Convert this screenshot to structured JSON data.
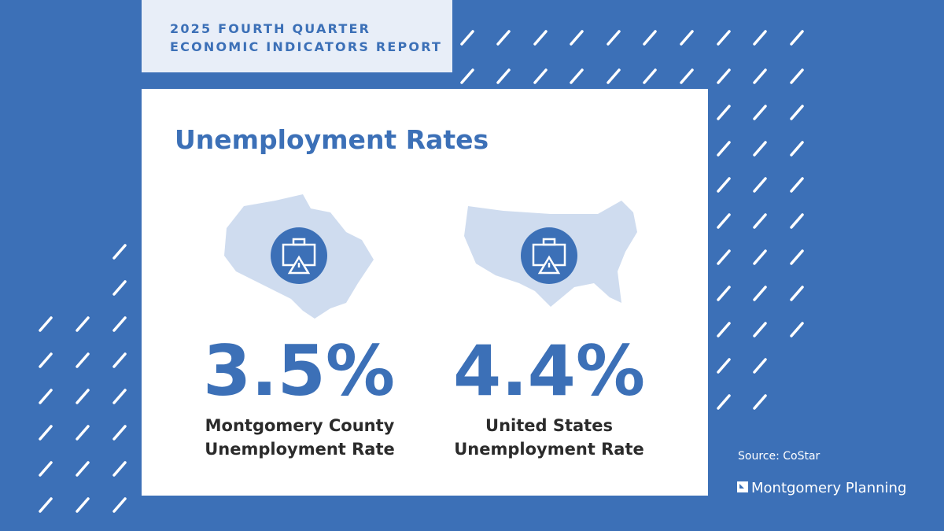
{
  "header": {
    "title_lines": [
      "2025 FOURTH QUARTER",
      "ECONOMIC INDICATORS REPORT"
    ]
  },
  "card": {
    "title": "Unemployment Rates",
    "stats": [
      {
        "value": "3.5%",
        "label_lines": [
          "Montgomery County",
          "Unemployment Rate"
        ]
      },
      {
        "value": "4.4%",
        "label_lines": [
          "United States",
          "Unemployment Rate"
        ]
      }
    ]
  },
  "footer": {
    "source": "Source: CoStar",
    "logo": "Montgomery Planning"
  }
}
